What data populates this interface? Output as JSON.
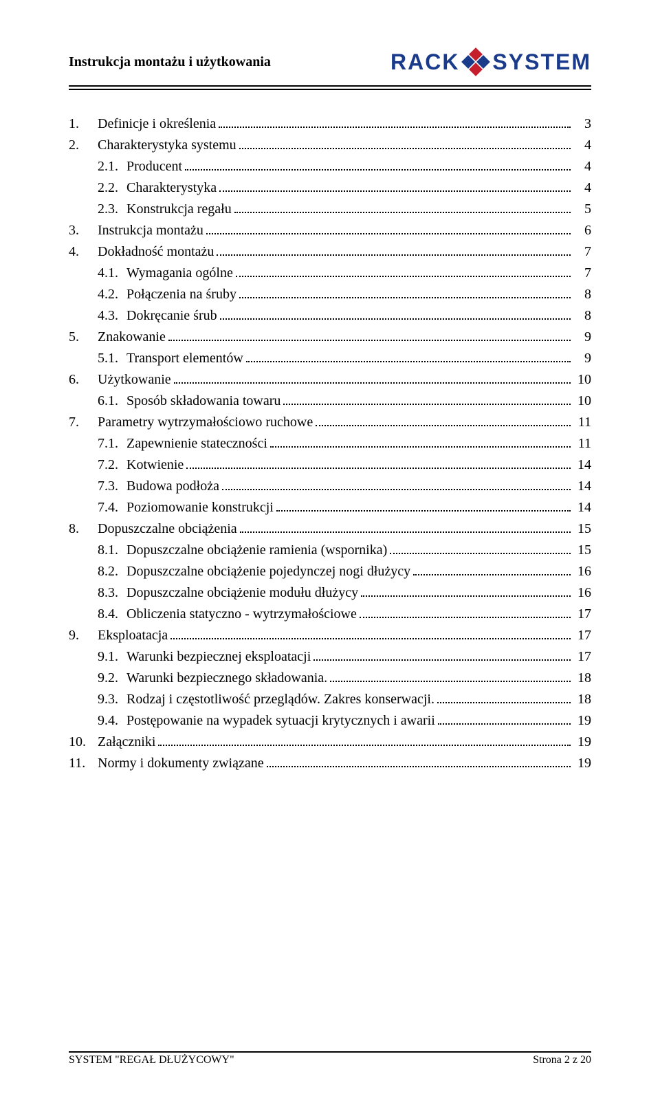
{
  "header": {
    "title": "Instrukcja montażu i użytkowania",
    "logo_left": "RACK",
    "logo_right": "SYSTEM"
  },
  "toc": [
    {
      "level": 1,
      "num": "1.",
      "label": "Definicje i określenia",
      "page": "3"
    },
    {
      "level": 1,
      "num": "2.",
      "label": "Charakterystyka systemu",
      "page": "4"
    },
    {
      "level": 2,
      "num": "2.1.",
      "label": "Producent",
      "page": "4"
    },
    {
      "level": 2,
      "num": "2.2.",
      "label": "Charakterystyka",
      "page": "4"
    },
    {
      "level": 2,
      "num": "2.3.",
      "label": "Konstrukcja regału",
      "page": "5"
    },
    {
      "level": 1,
      "num": "3.",
      "label": "Instrukcja montażu",
      "page": "6"
    },
    {
      "level": 1,
      "num": "4.",
      "label": "Dokładność montażu",
      "page": "7"
    },
    {
      "level": 2,
      "num": "4.1.",
      "label": "Wymagania ogólne",
      "page": "7"
    },
    {
      "level": 2,
      "num": "4.2.",
      "label": "Połączenia na śruby",
      "page": "8"
    },
    {
      "level": 2,
      "num": "4.3.",
      "label": "Dokręcanie śrub",
      "page": "8"
    },
    {
      "level": 1,
      "num": "5.",
      "label": "Znakowanie",
      "page": "9"
    },
    {
      "level": 2,
      "num": "5.1.",
      "label": "Transport elementów",
      "page": "9"
    },
    {
      "level": 1,
      "num": "6.",
      "label": "Użytkowanie",
      "page": "10"
    },
    {
      "level": 2,
      "num": "6.1.",
      "label": "Sposób składowania towaru",
      "page": "10"
    },
    {
      "level": 1,
      "num": "7.",
      "label": "Parametry wytrzymałościowo ruchowe",
      "page": "11"
    },
    {
      "level": 2,
      "num": "7.1.",
      "label": "Zapewnienie stateczności",
      "page": "11"
    },
    {
      "level": 2,
      "num": "7.2.",
      "label": "Kotwienie",
      "page": "14"
    },
    {
      "level": 2,
      "num": "7.3.",
      "label": "Budowa podłoża",
      "page": "14"
    },
    {
      "level": 2,
      "num": "7.4.",
      "label": "Poziomowanie konstrukcji",
      "page": "14"
    },
    {
      "level": 1,
      "num": "8.",
      "label": "Dopuszczalne obciążenia",
      "page": "15"
    },
    {
      "level": 2,
      "num": "8.1.",
      "label": "Dopuszczalne obciążenie ramienia (wspornika)",
      "page": "15"
    },
    {
      "level": 2,
      "num": "8.2.",
      "label": "Dopuszczalne obciążenie pojedynczej nogi dłużycy",
      "page": "16"
    },
    {
      "level": 2,
      "num": "8.3.",
      "label": "Dopuszczalne obciążenie modułu dłużycy",
      "page": "16"
    },
    {
      "level": 2,
      "num": "8.4.",
      "label": "Obliczenia statyczno - wytrzymałościowe",
      "page": "17"
    },
    {
      "level": 1,
      "num": "9.",
      "label": "Eksploatacja",
      "page": "17"
    },
    {
      "level": 2,
      "num": "9.1.",
      "label": "Warunki bezpiecznej eksploatacji",
      "page": "17"
    },
    {
      "level": 2,
      "num": "9.2.",
      "label": "Warunki bezpiecznego składowania.",
      "page": "18"
    },
    {
      "level": 2,
      "num": "9.3.",
      "label": "Rodzaj i częstotliwość przeglądów. Zakres konserwacji.",
      "page": "18"
    },
    {
      "level": 2,
      "num": "9.4.",
      "label": "Postępowanie na wypadek sytuacji krytycznych i awarii",
      "page": "19"
    },
    {
      "level": 1,
      "num": "10.",
      "label": "Załączniki",
      "page": "19"
    },
    {
      "level": 1,
      "num": "11.",
      "label": "Normy i dokumenty związane",
      "page": "19"
    }
  ],
  "footer": {
    "left": "SYSTEM \"REGAŁ DŁUŻYCOWY\"",
    "right": "Strona 2 z 20"
  },
  "colors": {
    "text": "#000000",
    "background": "#ffffff",
    "logo_blue": "#1a3a8a",
    "logo_red": "#c51f2e"
  }
}
